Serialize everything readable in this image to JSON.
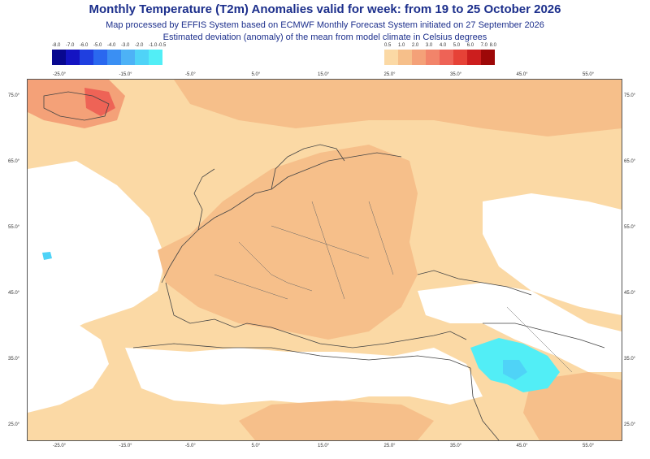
{
  "header": {
    "title": "Monthly Temperature (T2m) Anomalies valid for week: from 19 to 25 October 2026",
    "subtitle_line1": "Map processed by EFFIS System based on ECMWF Monthly Forecast System initiated on 27 September 2026",
    "subtitle_line2": "Estimated deviation (anomaly) of the mean from model climate in Celsius degrees"
  },
  "legend": {
    "cold": {
      "labels": [
        "-8.0",
        "-7.0",
        "-6.0",
        "-5.0",
        "-4.0",
        "-3.0",
        "-2.0",
        "-1.0",
        "-0.5"
      ],
      "colors": [
        "#08088f",
        "#1414c2",
        "#1f3fe0",
        "#2a68ef",
        "#3a8ff3",
        "#4db2f6",
        "#4fd3f7",
        "#52eef6"
      ]
    },
    "warm": {
      "labels": [
        "0.5",
        "1.0",
        "2.0",
        "3.0",
        "4.0",
        "5.0",
        "6.0",
        "7.0",
        "8.0"
      ],
      "colors": [
        "#fbd9a5",
        "#f6bf8a",
        "#f4a178",
        "#f2846a",
        "#ee6356",
        "#e64237",
        "#cc1e1e",
        "#9d0808"
      ]
    }
  },
  "axes": {
    "longitude_ticks": [
      "-25.0°",
      "-15.0°",
      "-5.0°",
      "5.0°",
      "15.0°",
      "25.0°",
      "35.0°",
      "45.0°",
      "55.0°"
    ],
    "latitude_ticks": [
      "75.0°",
      "65.0°",
      "55.0°",
      "45.0°",
      "35.0°",
      "25.0°"
    ]
  },
  "map": {
    "region": "Europe, North Africa and Middle East",
    "background_color": "#ffffff",
    "land_color": "#fbd9a5",
    "border_color": "#444444"
  }
}
